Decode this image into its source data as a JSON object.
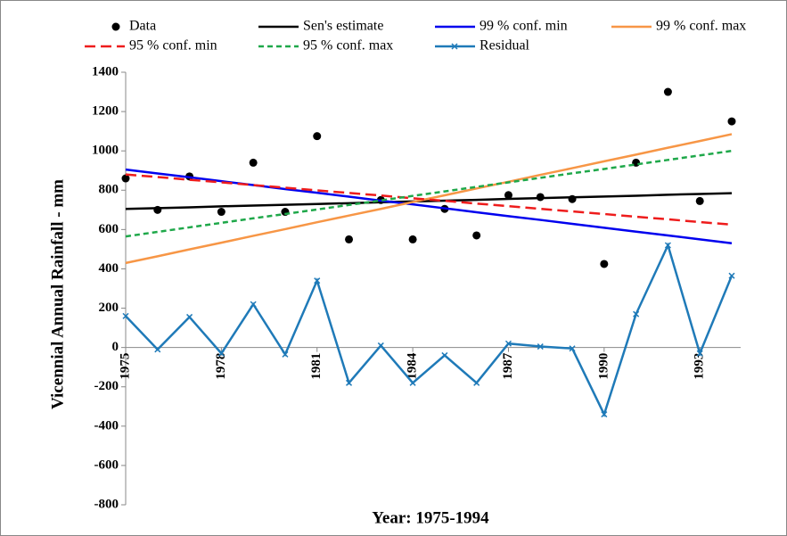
{
  "chart_data": {
    "type": "line",
    "x_label": "Year: 1975-1994",
    "y_label": "Vicennial Annual Rainfall - mm",
    "x": [
      1975,
      1976,
      1977,
      1978,
      1979,
      1980,
      1981,
      1982,
      1983,
      1984,
      1985,
      1986,
      1987,
      1988,
      1989,
      1990,
      1991,
      1992,
      1993,
      1994
    ],
    "xlim": [
      1975,
      1994
    ],
    "xticks": [
      1975,
      1978,
      1981,
      1984,
      1987,
      1990,
      1993
    ],
    "ylim": [
      -800,
      1400
    ],
    "yticks": [
      -800,
      -600,
      -400,
      -200,
      0,
      200,
      400,
      600,
      800,
      1000,
      1200,
      1400
    ],
    "series": [
      {
        "name": "Data",
        "color": "#000000",
        "style": "dots",
        "values": [
          860,
          700,
          870,
          690,
          940,
          690,
          1075,
          550,
          750,
          550,
          705,
          570,
          775,
          765,
          755,
          425,
          940,
          1300,
          745,
          1150
        ]
      },
      {
        "name": "Sen's estimate",
        "color": "#000000",
        "style": "solid",
        "values": [
          705,
          709,
          713,
          718,
          722,
          726,
          730,
          734,
          739,
          743,
          747,
          751,
          756,
          760,
          764,
          768,
          772,
          777,
          781,
          785
        ]
      },
      {
        "name": "99 % conf. min",
        "color": "#0000ee",
        "style": "solid",
        "values": [
          905,
          885,
          866,
          846,
          826,
          806,
          787,
          767,
          747,
          728,
          708,
          688,
          668,
          649,
          629,
          609,
          589,
          570,
          550,
          530
        ]
      },
      {
        "name": "99 % conf. max",
        "color": "#f79646",
        "style": "solid",
        "values": [
          430,
          464,
          499,
          533,
          568,
          602,
          637,
          671,
          705,
          740,
          774,
          809,
          843,
          878,
          912,
          947,
          981,
          1016,
          1050,
          1085
        ]
      },
      {
        "name": "95 % conf. min",
        "color": "#ee1c1c",
        "style": "dashed",
        "values": [
          880,
          867,
          853,
          840,
          826,
          813,
          799,
          786,
          773,
          759,
          746,
          732,
          719,
          705,
          692,
          679,
          665,
          652,
          638,
          625
        ]
      },
      {
        "name": "95 % conf. max",
        "color": "#1fa84a",
        "style": "dotted",
        "values": [
          565,
          588,
          611,
          634,
          657,
          679,
          702,
          725,
          748,
          771,
          794,
          817,
          840,
          863,
          886,
          908,
          931,
          954,
          977,
          1000
        ]
      },
      {
        "name": "Residual",
        "color": "#1f7ab8",
        "style": "cross",
        "values": [
          160,
          -10,
          155,
          -30,
          220,
          -35,
          340,
          -180,
          10,
          -180,
          -40,
          -180,
          20,
          5,
          -5,
          -340,
          170,
          520,
          -30,
          365
        ]
      }
    ]
  }
}
